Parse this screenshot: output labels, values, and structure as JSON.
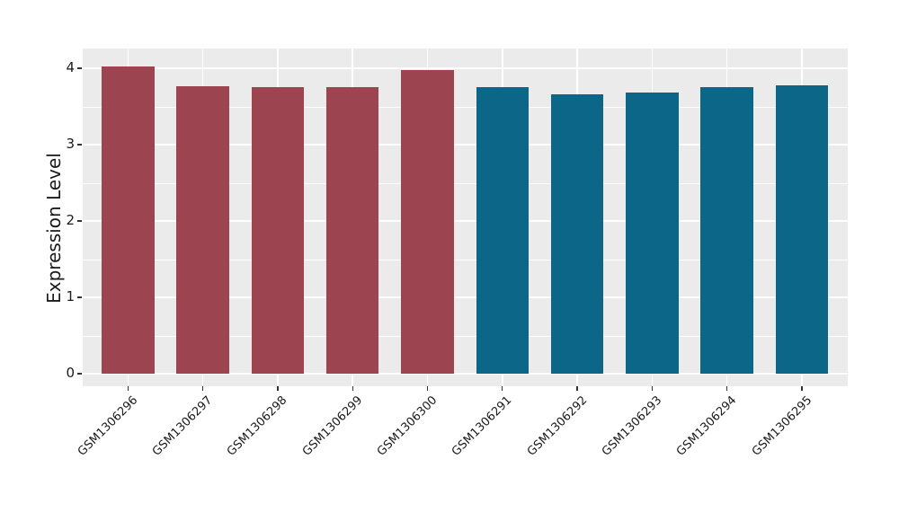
{
  "figure": {
    "background": "#FFFFFF"
  },
  "chart_data": {
    "type": "bar",
    "title": "",
    "xlabel": "",
    "ylabel": "Expression Level",
    "categories": [
      "GSM1306296",
      "GSM1306297",
      "GSM1306298",
      "GSM1306299",
      "GSM1306300",
      "GSM1306291",
      "GSM1306292",
      "GSM1306293",
      "GSM1306294",
      "GSM1306295"
    ],
    "values": [
      4.02,
      3.76,
      3.75,
      3.75,
      3.98,
      3.75,
      3.66,
      3.68,
      3.75,
      3.78
    ],
    "groups": [
      "red",
      "red",
      "red",
      "red",
      "red",
      "teal",
      "teal",
      "teal",
      "teal",
      "teal"
    ],
    "group_colors": {
      "red": "#9C4450",
      "teal": "#0C6688"
    },
    "yticks": [
      0,
      1,
      2,
      3,
      4
    ],
    "yticks_minor": [
      0.5,
      1.5,
      2.5,
      3.5
    ],
    "ylim": [
      0,
      4.26
    ],
    "x_tick_rotation_deg": 45,
    "legend": "none",
    "grid": {
      "horizontal": "major+minor",
      "vertical": "major-only",
      "color": "#FFFFFF"
    },
    "panel_background": "#EBEBEB",
    "text_color": "#1A1A1A",
    "tick_color": "#333333"
  }
}
